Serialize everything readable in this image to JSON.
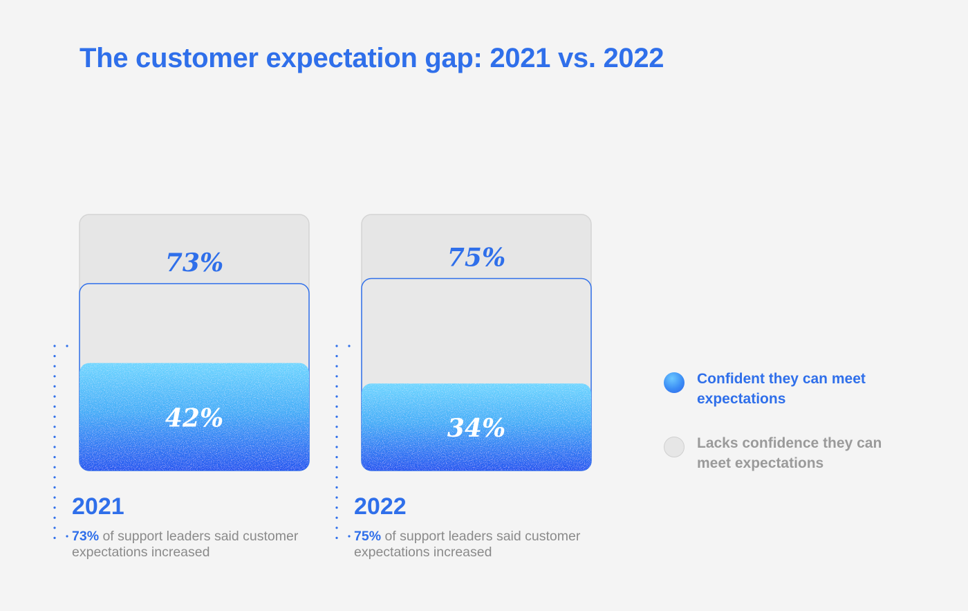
{
  "title": "The customer expectation gap: 2021 vs. 2022",
  "colors": {
    "accent": "#2f6fea",
    "confident_light": "#6fd2ff",
    "confident_dark": "#2a5ff0",
    "lacks": "#e6e6e6",
    "caption": "#8a8a8a"
  },
  "chart_data": {
    "type": "bar",
    "categories": [
      "2021",
      "2022"
    ],
    "series": [
      {
        "name": "Confident they can meet expectations",
        "values": [
          42,
          34
        ]
      },
      {
        "name": "Lacks confidence they can meet expectations",
        "values": [
          58,
          66
        ]
      }
    ],
    "expectations_increased": [
      73,
      75
    ],
    "value_labels": {
      "expectations_increased": [
        "73%",
        "75%"
      ],
      "confident": [
        "42%",
        "34%"
      ]
    },
    "ylim": [
      0,
      100
    ]
  },
  "panels": [
    {
      "year": "2021",
      "caption_highlight": "73%",
      "caption_text": " of support leaders said customer expectations increased"
    },
    {
      "year": "2022",
      "caption_highlight": "75%",
      "caption_text": " of support leaders said customer expectations increased"
    }
  ],
  "legend": [
    {
      "label": "Confident they can meet expectations"
    },
    {
      "label": "Lacks confidence they can meet expectations"
    }
  ]
}
